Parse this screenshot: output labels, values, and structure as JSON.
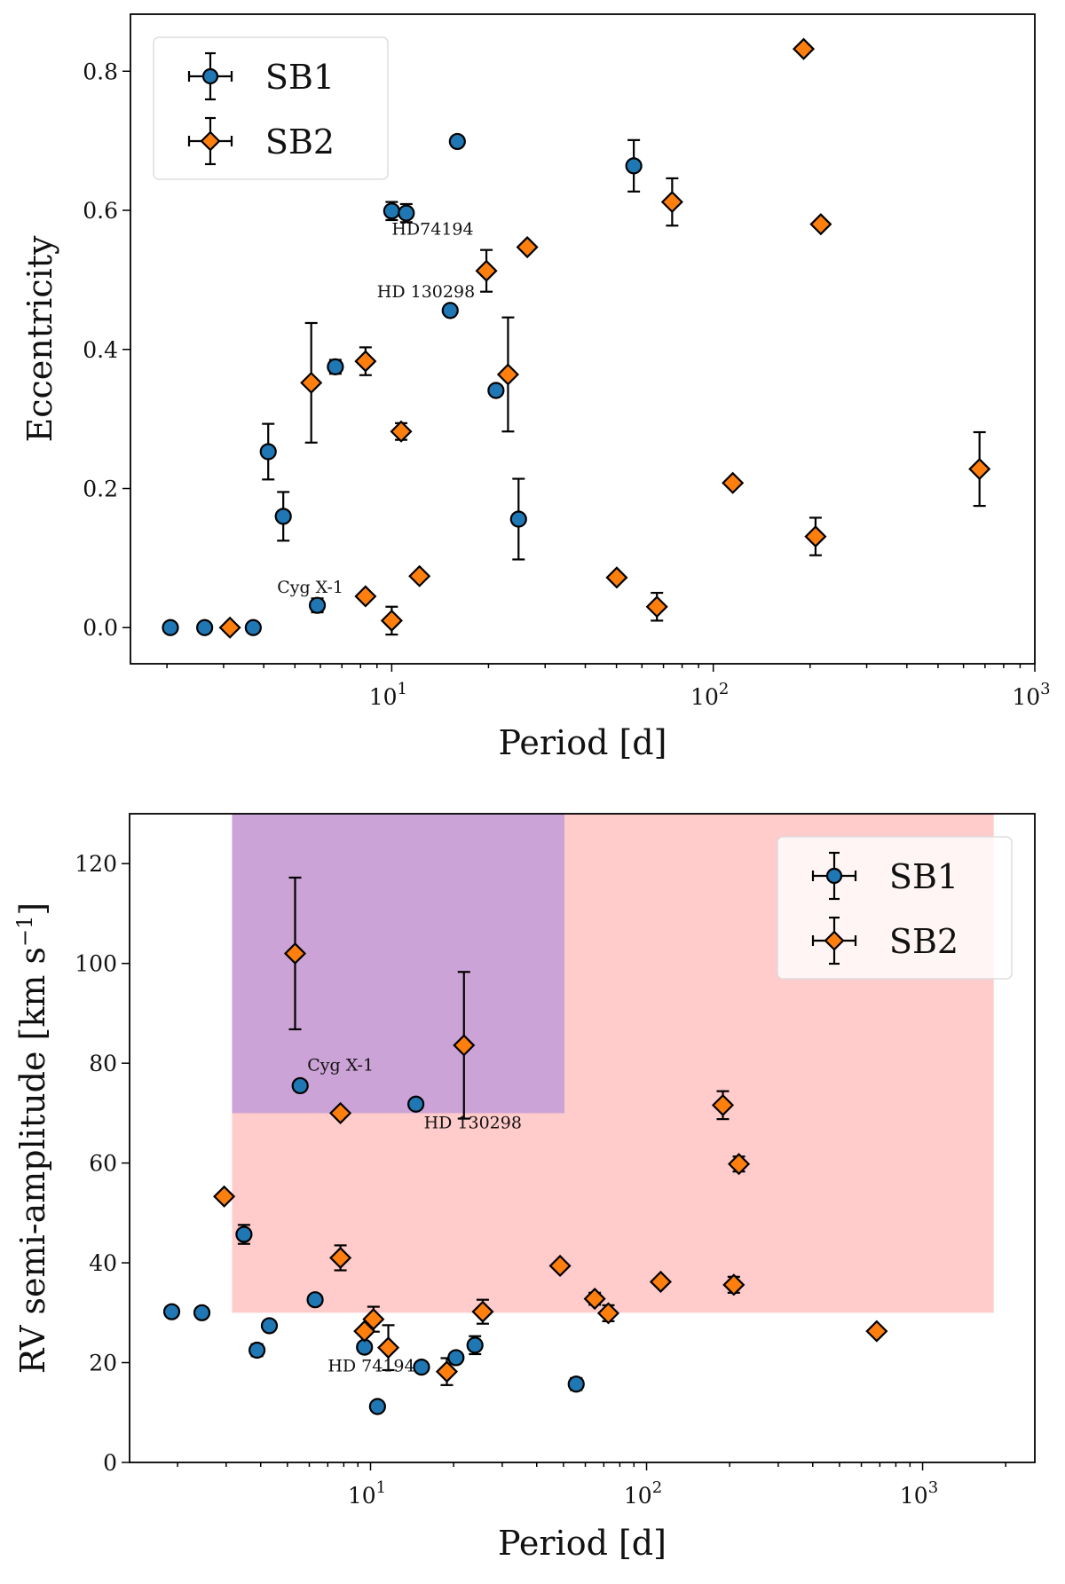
{
  "chart_data": [
    {
      "type": "scatter",
      "panel": "top",
      "title": "",
      "xlabel": "Period [d]",
      "ylabel": "Eccentricity",
      "xscale": "log",
      "xlim": [
        1.54,
        1000
      ],
      "ylim": [
        -0.052,
        0.882
      ],
      "xticks": [
        {
          "value": 10,
          "label": "10^1"
        },
        {
          "value": 100,
          "label": "10^2"
        },
        {
          "value": 1000,
          "label": "10^3"
        }
      ],
      "yticks": [
        0.0,
        0.2,
        0.4,
        0.6,
        0.8
      ],
      "ytick_labels": [
        "0.0",
        "0.2",
        "0.4",
        "0.6",
        "0.8"
      ],
      "grid": false,
      "legend": {
        "placement": "top-left",
        "entries": [
          "SB1",
          "SB2"
        ]
      },
      "series": [
        {
          "name": "SB1",
          "marker": "circle",
          "color": "#1f77b4",
          "points": [
            {
              "x": 2.05,
              "y": 0.0,
              "yerr": 0
            },
            {
              "x": 2.62,
              "y": 0.0,
              "yerr": 0
            },
            {
              "x": 3.71,
              "y": 0.0,
              "yerr": 0
            },
            {
              "x": 4.13,
              "y": 0.253,
              "yerr": 0.04
            },
            {
              "x": 4.6,
              "y": 0.16,
              "yerr": 0.035
            },
            {
              "x": 5.87,
              "y": 0.032,
              "yerr": 0.01
            },
            {
              "x": 6.68,
              "y": 0.375,
              "yerr": 0.01
            },
            {
              "x": 10.0,
              "y": 0.599,
              "yerr": 0.013
            },
            {
              "x": 11.1,
              "y": 0.596,
              "yerr": 0.013
            },
            {
              "x": 15.2,
              "y": 0.456,
              "yerr": 0
            },
            {
              "x": 16.0,
              "y": 0.699,
              "yerr": 0
            },
            {
              "x": 21.1,
              "y": 0.341,
              "yerr": 0
            },
            {
              "x": 24.8,
              "y": 0.156,
              "yerr": 0.058
            },
            {
              "x": 56.6,
              "y": 0.664,
              "yerr": 0.037
            }
          ]
        },
        {
          "name": "SB2",
          "marker": "diamond",
          "color": "#ff7f0e",
          "points": [
            {
              "x": 3.14,
              "y": 0.0,
              "yerr": 0
            },
            {
              "x": 5.62,
              "y": 0.352,
              "yerr": 0.086
            },
            {
              "x": 8.29,
              "y": 0.383,
              "yerr": 0.02
            },
            {
              "x": 8.29,
              "y": 0.045,
              "yerr": 0
            },
            {
              "x": 10.0,
              "y": 0.01,
              "yerr": 0.02
            },
            {
              "x": 10.7,
              "y": 0.282,
              "yerr": 0.012
            },
            {
              "x": 12.2,
              "y": 0.074,
              "yerr": 0
            },
            {
              "x": 19.7,
              "y": 0.513,
              "yerr": 0.03
            },
            {
              "x": 23.0,
              "y": 0.364,
              "yerr": 0.082
            },
            {
              "x": 26.4,
              "y": 0.547,
              "yerr": 0
            },
            {
              "x": 50.1,
              "y": 0.072,
              "yerr": 0
            },
            {
              "x": 66.8,
              "y": 0.03,
              "yerr": 0.02
            },
            {
              "x": 74.5,
              "y": 0.612,
              "yerr": 0.034
            },
            {
              "x": 115,
              "y": 0.208,
              "yerr": 0
            },
            {
              "x": 191,
              "y": 0.832,
              "yerr": 0
            },
            {
              "x": 208,
              "y": 0.131,
              "yerr": 0.027
            },
            {
              "x": 216,
              "y": 0.58,
              "yerr": 0
            },
            {
              "x": 673,
              "y": 0.228,
              "yerr": 0.053
            }
          ]
        }
      ],
      "annotations": [
        {
          "text": "HD74194",
          "x": 10.0,
          "y": 0.565
        },
        {
          "text": "HD 130298",
          "x": 9.0,
          "y": 0.475
        },
        {
          "text": "Cyg X-1",
          "x": 4.4,
          "y": 0.05
        }
      ]
    },
    {
      "type": "scatter",
      "panel": "bottom",
      "title": "",
      "xlabel": "Period [d]",
      "ylabel": "RV semi-amplitude [km s^-1]",
      "xscale": "log",
      "xlim": [
        1.34,
        2550
      ],
      "ylim": [
        0,
        130
      ],
      "xticks": [
        {
          "value": 10,
          "label": "10^1"
        },
        {
          "value": 100,
          "label": "10^2"
        },
        {
          "value": 1000,
          "label": "10^3"
        }
      ],
      "yticks": [
        0,
        20,
        40,
        60,
        80,
        100,
        120
      ],
      "ytick_labels": [
        "0",
        "20",
        "40",
        "60",
        "80",
        "100",
        "120"
      ],
      "grid": false,
      "legend": {
        "placement": "top-right",
        "entries": [
          "SB1",
          "SB2"
        ]
      },
      "shaded_regions": [
        {
          "name": "pink-region",
          "x": [
            3.15,
            1810
          ],
          "y": [
            30,
            130
          ],
          "color": "#ffcbcb"
        },
        {
          "name": "purple-region",
          "x": [
            3.15,
            50.4
          ],
          "y": [
            70,
            130
          ],
          "color": "#cba3d6"
        }
      ],
      "series": [
        {
          "name": "SB1",
          "marker": "circle",
          "color": "#1f77b4",
          "points": [
            {
              "x": 1.905,
              "y": 30.2,
              "yerr": 1.0
            },
            {
              "x": 2.45,
              "y": 30.0,
              "yerr": 0
            },
            {
              "x": 3.48,
              "y": 45.7,
              "yerr": 1.9
            },
            {
              "x": 3.88,
              "y": 22.5,
              "yerr": 1.2
            },
            {
              "x": 4.3,
              "y": 27.4,
              "yerr": 0
            },
            {
              "x": 5.56,
              "y": 75.5,
              "yerr": 0
            },
            {
              "x": 6.3,
              "y": 32.6,
              "yerr": 0
            },
            {
              "x": 9.51,
              "y": 23.1,
              "yerr": 0
            },
            {
              "x": 10.6,
              "y": 11.2,
              "yerr": 0
            },
            {
              "x": 14.6,
              "y": 71.8,
              "yerr": 0
            },
            {
              "x": 15.3,
              "y": 19.1,
              "yerr": 0
            },
            {
              "x": 20.4,
              "y": 21.0,
              "yerr": 0
            },
            {
              "x": 23.9,
              "y": 23.5,
              "yerr": 1.8
            },
            {
              "x": 55.6,
              "y": 15.7,
              "yerr": 1.2
            }
          ]
        },
        {
          "name": "SB2",
          "marker": "diamond",
          "color": "#ff7f0e",
          "points": [
            {
              "x": 2.95,
              "y": 53.3,
              "yerr": 0
            },
            {
              "x": 5.33,
              "y": 102.0,
              "yerr": 15.2
            },
            {
              "x": 7.78,
              "y": 70.0,
              "yerr": 0
            },
            {
              "x": 7.78,
              "y": 41.0,
              "yerr": 2.5
            },
            {
              "x": 9.51,
              "y": 26.3,
              "yerr": 0
            },
            {
              "x": 10.25,
              "y": 28.7,
              "yerr": 2.5
            },
            {
              "x": 11.6,
              "y": 23.0,
              "yerr": 4.5
            },
            {
              "x": 18.9,
              "y": 18.2,
              "yerr": 2.7
            },
            {
              "x": 21.8,
              "y": 83.6,
              "yerr": 14.7
            },
            {
              "x": 25.5,
              "y": 30.2,
              "yerr": 2.4
            },
            {
              "x": 48.6,
              "y": 39.4,
              "yerr": 0
            },
            {
              "x": 64.9,
              "y": 32.8,
              "yerr": 1.2
            },
            {
              "x": 72.7,
              "y": 29.9,
              "yerr": 1.6
            },
            {
              "x": 112.5,
              "y": 36.2,
              "yerr": 0
            },
            {
              "x": 189,
              "y": 71.6,
              "yerr": 2.8
            },
            {
              "x": 207,
              "y": 35.6,
              "yerr": 1.6
            },
            {
              "x": 216,
              "y": 59.8,
              "yerr": 1.5
            },
            {
              "x": 682,
              "y": 26.3,
              "yerr": 0
            }
          ]
        }
      ],
      "annotations": [
        {
          "text": "Cyg X-1",
          "x": 5.9,
          "y": 78.5
        },
        {
          "text": "HD 130298",
          "x": 15.6,
          "y": 67.0
        },
        {
          "text": "HD 74194",
          "x": 7.0,
          "y": 18.2
        }
      ]
    }
  ]
}
